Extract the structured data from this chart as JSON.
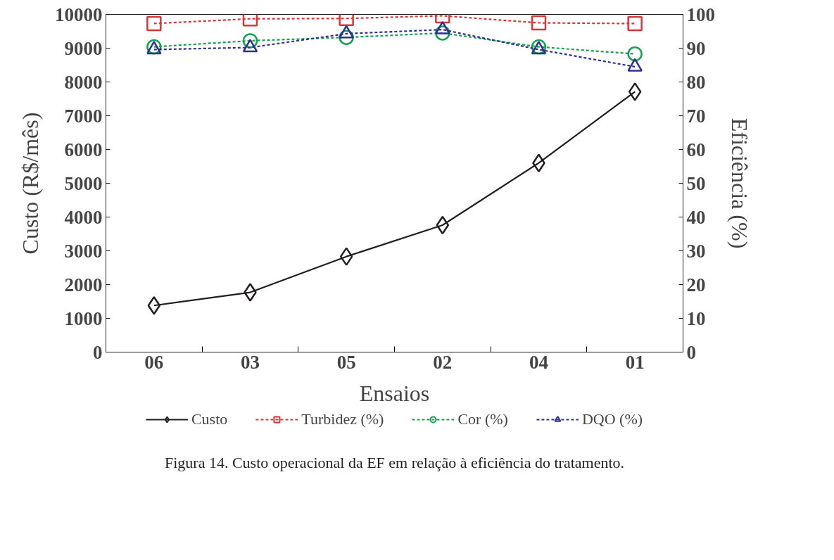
{
  "chart_data": {
    "type": "line",
    "xlabel": "Ensaios",
    "ylabel": "Custo (R$/mês)",
    "y2label": "Eficiência (%)",
    "categories": [
      "06",
      "03",
      "05",
      "02",
      "04",
      "01"
    ],
    "ylim": [
      0,
      10000
    ],
    "yticks": [
      0,
      1000,
      2000,
      3000,
      4000,
      5000,
      6000,
      7000,
      8000,
      9000,
      10000
    ],
    "y2lim": [
      0,
      100
    ],
    "y2ticks": [
      0,
      10,
      20,
      30,
      40,
      50,
      60,
      70,
      80,
      90,
      100
    ],
    "grid": false,
    "legend": "bottom",
    "series": [
      {
        "name": "Custo",
        "color": "#231f20",
        "marker": "diamond",
        "line_style": "solid",
        "values": [
          1380,
          1770,
          2830,
          3760,
          5600,
          7710
        ]
      },
      {
        "name": "Turbidez (%)",
        "color": "#d7373a",
        "marker": "square",
        "line_style": "dashed",
        "axis": "y2",
        "values": [
          97.3,
          98.7,
          98.8,
          99.6,
          97.5,
          97.3
        ]
      },
      {
        "name": "Cor (%)",
        "color": "#16a04f",
        "marker": "circle",
        "line_style": "dashed",
        "axis": "y2",
        "values": [
          90.4,
          92.2,
          93.2,
          94.5,
          90.4,
          88.3
        ]
      },
      {
        "name": "DQO (%)",
        "color": "#2e3192",
        "marker": "triangle",
        "line_style": "dashed",
        "axis": "y2",
        "values": [
          89.6,
          90.2,
          94.3,
          95.5,
          89.6,
          84.5
        ]
      }
    ],
    "annotations": [
      "Figura 14. Custo operacional da EF em relação à eficiência do tratamento."
    ]
  }
}
